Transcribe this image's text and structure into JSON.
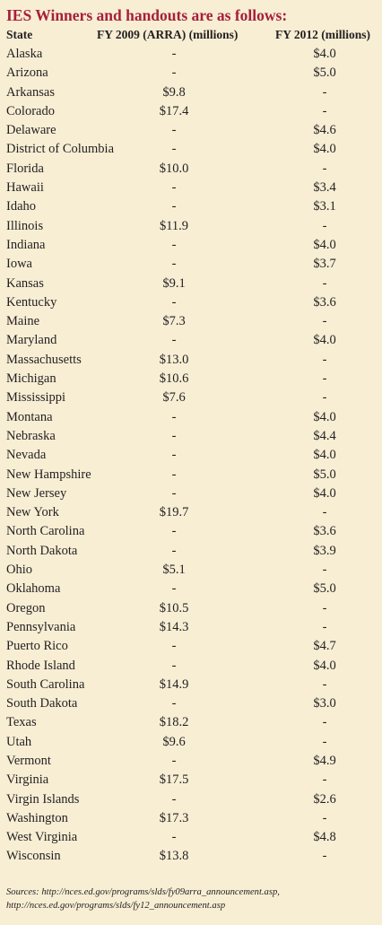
{
  "title": "IES Winners and handouts are as follows:",
  "columns": {
    "state": "State",
    "fy09": "FY 2009 (ARRA) (millions)",
    "fy12": "FY 2012 (millions)"
  },
  "rows": [
    {
      "state": "Alaska",
      "fy09": "-",
      "fy12": "$4.0"
    },
    {
      "state": "Arizona",
      "fy09": "-",
      "fy12": "$5.0"
    },
    {
      "state": "Arkansas",
      "fy09": "$9.8",
      "fy12": "-"
    },
    {
      "state": "Colorado",
      "fy09": "$17.4",
      "fy12": "-"
    },
    {
      "state": "Delaware",
      "fy09": "-",
      "fy12": "$4.6"
    },
    {
      "state": "District of Columbia",
      "fy09": "-",
      "fy12": "$4.0"
    },
    {
      "state": "Florida",
      "fy09": "$10.0",
      "fy12": "-"
    },
    {
      "state": "Hawaii",
      "fy09": "-",
      "fy12": "$3.4"
    },
    {
      "state": "Idaho",
      "fy09": "-",
      "fy12": "$3.1"
    },
    {
      "state": "Illinois",
      "fy09": "$11.9",
      "fy12": "-"
    },
    {
      "state": "Indiana",
      "fy09": "-",
      "fy12": "$4.0"
    },
    {
      "state": "Iowa",
      "fy09": "-",
      "fy12": "$3.7"
    },
    {
      "state": "Kansas",
      "fy09": "$9.1",
      "fy12": "-"
    },
    {
      "state": "Kentucky",
      "fy09": "-",
      "fy12": "$3.6"
    },
    {
      "state": "Maine",
      "fy09": "$7.3",
      "fy12": "-"
    },
    {
      "state": "Maryland",
      "fy09": "-",
      "fy12": "$4.0"
    },
    {
      "state": "Massachusetts",
      "fy09": "$13.0",
      "fy12": "-"
    },
    {
      "state": "Michigan",
      "fy09": "$10.6",
      "fy12": "-"
    },
    {
      "state": "Mississippi",
      "fy09": "$7.6",
      "fy12": "-"
    },
    {
      "state": "Montana",
      "fy09": "-",
      "fy12": "$4.0"
    },
    {
      "state": "Nebraska",
      "fy09": "-",
      "fy12": "$4.4"
    },
    {
      "state": "Nevada",
      "fy09": "-",
      "fy12": "$4.0"
    },
    {
      "state": "New Hampshire",
      "fy09": "-",
      "fy12": "$5.0"
    },
    {
      "state": "New Jersey",
      "fy09": "-",
      "fy12": "$4.0"
    },
    {
      "state": "New York",
      "fy09": "$19.7",
      "fy12": "-"
    },
    {
      "state": "North Carolina",
      "fy09": "-",
      "fy12": "$3.6"
    },
    {
      "state": "North Dakota",
      "fy09": "-",
      "fy12": "$3.9"
    },
    {
      "state": "Ohio",
      "fy09": "$5.1",
      "fy12": "-"
    },
    {
      "state": "Oklahoma",
      "fy09": "-",
      "fy12": "$5.0"
    },
    {
      "state": "Oregon",
      "fy09": "$10.5",
      "fy12": "-"
    },
    {
      "state": "Pennsylvania",
      "fy09": "$14.3",
      "fy12": "-"
    },
    {
      "state": "Puerto Rico",
      "fy09": "-",
      "fy12": "$4.7"
    },
    {
      "state": "Rhode Island",
      "fy09": "-",
      "fy12": "$4.0"
    },
    {
      "state": "South Carolina",
      "fy09": "$14.9",
      "fy12": "-"
    },
    {
      "state": "South Dakota",
      "fy09": "-",
      "fy12": "$3.0"
    },
    {
      "state": "Texas",
      "fy09": "$18.2",
      "fy12": "-"
    },
    {
      "state": "Utah",
      "fy09": "$9.6",
      "fy12": "-"
    },
    {
      "state": "Vermont",
      "fy09": "-",
      "fy12": "$4.9"
    },
    {
      "state": "Virginia",
      "fy09": "$17.5",
      "fy12": "-"
    },
    {
      "state": "Virgin Islands",
      "fy09": "-",
      "fy12": "$2.6"
    },
    {
      "state": "Washington",
      "fy09": "$17.3",
      "fy12": "-"
    },
    {
      "state": "West Virginia",
      "fy09": "-",
      "fy12": "$4.8"
    },
    {
      "state": "Wisconsin",
      "fy09": "$13.8",
      "fy12": "-"
    }
  ],
  "sources": "Sources: http://nces.ed.gov/programs/slds/fy09arra_announcement.asp, http://nces.ed.gov/programs/slds/fy12_announcement.asp",
  "colors": {
    "background": "#f7eed4",
    "title": "#a6203a",
    "text": "#231f20"
  }
}
